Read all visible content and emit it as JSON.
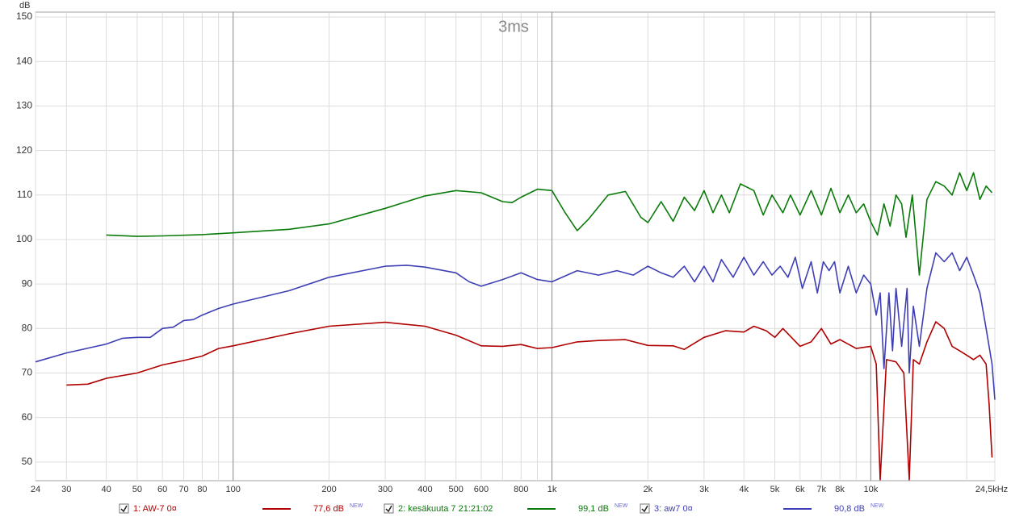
{
  "chart_data": {
    "type": "line",
    "title": "3ms",
    "y_label": "dB",
    "log_x": true,
    "xlim": [
      24,
      24500
    ],
    "ylim": [
      45.8,
      151.1
    ],
    "yticks": [
      50,
      60,
      70,
      80,
      90,
      100,
      110,
      120,
      130,
      140,
      150
    ],
    "xticks": [
      24,
      30,
      40,
      50,
      60,
      70,
      80,
      100,
      200,
      300,
      400,
      500,
      600,
      800,
      {
        "value": 1000,
        "label": "1k"
      },
      {
        "value": 2000,
        "label": "2k"
      },
      {
        "value": 3000,
        "label": "3k"
      },
      {
        "value": 4000,
        "label": "4k"
      },
      {
        "value": 5000,
        "label": "5k"
      },
      {
        "value": 6000,
        "label": "6k"
      },
      {
        "value": 7000,
        "label": "7k"
      },
      {
        "value": 8000,
        "label": "8k"
      },
      {
        "value": 10000,
        "label": "10k"
      },
      {
        "value": 24500,
        "label": "24,5kHz"
      }
    ],
    "x_minor_grid": [
      90,
      700,
      900,
      9000,
      20000
    ],
    "x_major_grid": [
      100,
      1000,
      10000
    ],
    "series": [
      {
        "name": "1: AW-7 0¤",
        "color": "#b00000",
        "legend_value": "77,6 dB",
        "badge": "NEW",
        "x": [
          30,
          35,
          40,
          50,
          60,
          70,
          80,
          90,
          100,
          150,
          200,
          300,
          400,
          500,
          600,
          700,
          800,
          900,
          1000,
          1200,
          1400,
          1700,
          2000,
          2400,
          2600,
          3000,
          3500,
          4000,
          4300,
          4700,
          5000,
          5300,
          6000,
          6500,
          7000,
          7500,
          8000,
          9000,
          10000,
          10400,
          10700,
          11200,
          12000,
          12700,
          13200,
          13600,
          14200,
          15000,
          16000,
          17000,
          18000,
          19000,
          20000,
          21000,
          22000,
          23000,
          23500,
          24000
        ],
        "values": [
          67.3,
          67.5,
          68.8,
          70,
          71.8,
          72.8,
          73.8,
          75.5,
          76.1,
          78.8,
          80.5,
          81.4,
          80.5,
          78.5,
          76.1,
          76,
          76.4,
          75.5,
          75.7,
          77,
          77.3,
          77.5,
          76.2,
          76.1,
          75.3,
          78,
          79.5,
          79.2,
          80.5,
          79.5,
          78,
          80,
          76,
          77,
          80,
          76.5,
          77.5,
          75.5,
          76,
          72,
          46,
          73,
          72.5,
          70,
          46,
          73,
          72,
          77,
          81.5,
          80,
          76,
          75,
          74,
          73,
          74,
          72,
          63,
          51
        ]
      },
      {
        "name": "2: kesäkuuta 7 21:21:02",
        "color": "#0a7a0a",
        "legend_value": "99,1 dB",
        "badge": "NEW",
        "x": [
          40,
          50,
          60,
          80,
          100,
          150,
          200,
          300,
          400,
          500,
          600,
          700,
          750,
          800,
          900,
          1000,
          1100,
          1200,
          1300,
          1500,
          1700,
          1900,
          2000,
          2200,
          2400,
          2600,
          2800,
          3000,
          3200,
          3400,
          3600,
          3900,
          4300,
          4600,
          4900,
          5300,
          5600,
          6000,
          6500,
          7000,
          7500,
          8000,
          8500,
          9000,
          9500,
          10000,
          10500,
          11000,
          11500,
          12000,
          12500,
          12900,
          13500,
          14200,
          15000,
          16000,
          17000,
          18000,
          19000,
          20000,
          21000,
          22000,
          23000,
          24000
        ],
        "values": [
          101,
          100.7,
          100.8,
          101.1,
          101.5,
          102.3,
          103.5,
          107,
          109.8,
          111,
          110.5,
          108.5,
          108.3,
          109.5,
          111.3,
          111,
          106,
          102,
          104.5,
          110,
          110.8,
          105,
          103.8,
          108.5,
          104.1,
          109.5,
          106.5,
          111,
          106,
          110,
          106,
          112.5,
          111,
          105.5,
          110,
          106,
          110,
          105.5,
          111,
          105.5,
          111.5,
          106,
          110,
          106,
          108,
          104,
          101,
          108,
          103,
          110,
          108,
          100.5,
          110,
          92,
          109,
          113,
          112,
          110,
          115,
          111,
          115,
          109,
          112,
          110.5
        ]
      },
      {
        "name": "3: aw7 0¤",
        "color": "#3f3fb5",
        "legend_value": "90,8 dB",
        "badge": "NEW",
        "x": [
          24,
          30,
          40,
          45,
          50,
          55,
          60,
          65,
          70,
          75,
          80,
          90,
          100,
          150,
          200,
          300,
          350,
          400,
          500,
          550,
          600,
          700,
          800,
          900,
          1000,
          1200,
          1400,
          1600,
          1800,
          2000,
          2200,
          2400,
          2600,
          2800,
          3000,
          3200,
          3400,
          3700,
          4000,
          4300,
          4600,
          4900,
          5200,
          5500,
          5800,
          6100,
          6500,
          6800,
          7100,
          7400,
          7700,
          8000,
          8500,
          9000,
          9500,
          10000,
          10400,
          10700,
          11000,
          11400,
          11700,
          12000,
          12500,
          13000,
          13200,
          13600,
          14200,
          15000,
          16000,
          17000,
          18000,
          19000,
          20000,
          21000,
          22000,
          23000,
          24000,
          24500
        ],
        "values": [
          72.5,
          74.5,
          76.5,
          77.8,
          78,
          78,
          80,
          80.3,
          81.8,
          82,
          83,
          84.5,
          85.5,
          88.5,
          91.5,
          94,
          94.2,
          93.8,
          92.5,
          90.5,
          89.5,
          91,
          92.5,
          91,
          90.5,
          93,
          92,
          93,
          92,
          94,
          92.5,
          91.5,
          94,
          90.5,
          94,
          90.5,
          95.5,
          91.5,
          96,
          92,
          95,
          92,
          94,
          91.5,
          96,
          89,
          95,
          88,
          95,
          93,
          95,
          88,
          94,
          88,
          92,
          90,
          83,
          88,
          71,
          88,
          75,
          89,
          76,
          89,
          70,
          85,
          76,
          89,
          97,
          95,
          97,
          93,
          96,
          92,
          88,
          80,
          72,
          64
        ]
      }
    ]
  }
}
